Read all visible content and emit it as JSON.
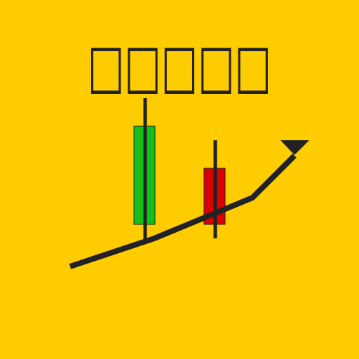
{
  "title": "□□□□□"
}
